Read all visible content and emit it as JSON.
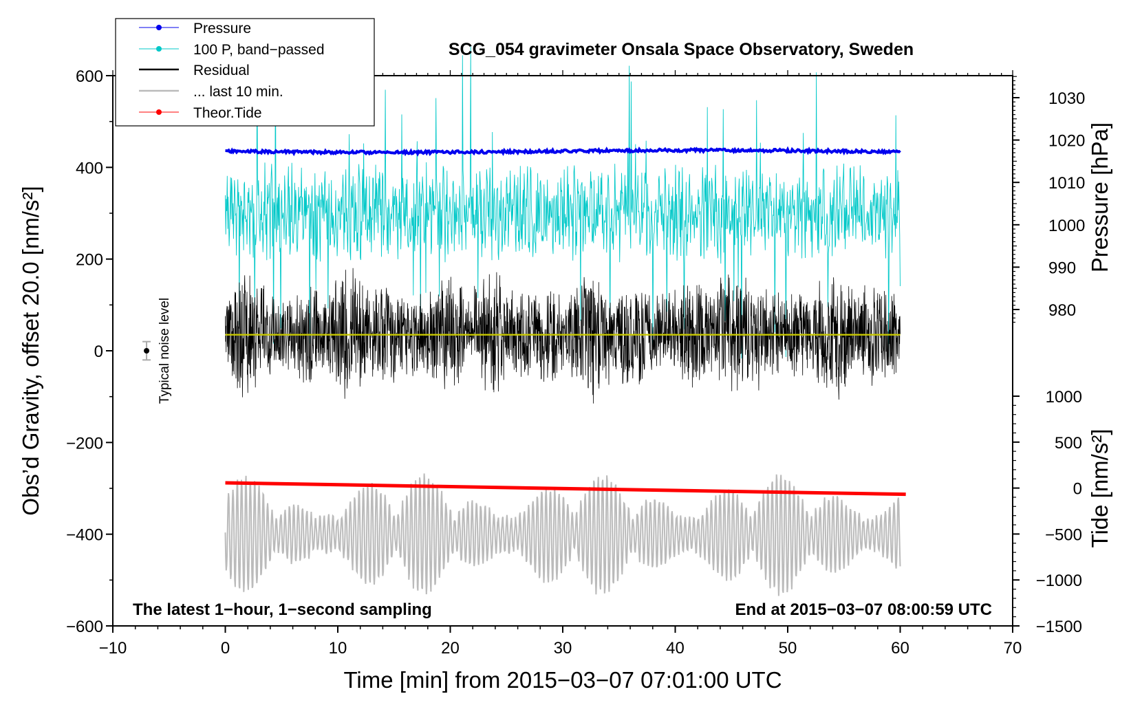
{
  "chart_data": {
    "type": "line",
    "title": "SCG_054 gravimeter Onsala Space Observatory, Sweden",
    "xlabel": "Time [min] from 2015−03−07 07:01:00 UTC",
    "ylabel": "Obs’d Gravity, offset 20.0 [nm/s²]",
    "xlim": [
      -10,
      70
    ],
    "ylim": [
      -600,
      600
    ],
    "x_ticks": [
      -10,
      0,
      10,
      20,
      30,
      40,
      50,
      60,
      70
    ],
    "x_tick_labels": [
      "−10",
      "0",
      "10",
      "20",
      "30",
      "40",
      "50",
      "60",
      "70"
    ],
    "y_ticks": [
      -600,
      -400,
      -200,
      0,
      200,
      400,
      600
    ],
    "y_tick_labels": [
      "−600",
      "−400",
      "−200",
      "0",
      "200",
      "400",
      "600"
    ],
    "pressure_axis": {
      "label": "Pressure [hPa]",
      "ticks": [
        980,
        990,
        1000,
        1010,
        1020,
        1030
      ],
      "tick_labels": [
        "980",
        "990",
        "1000",
        "1010",
        "1020",
        "1030"
      ]
    },
    "tide_axis": {
      "label": "Tide [nm/s²]",
      "ticks": [
        -1500,
        -1000,
        -500,
        0,
        500,
        1000
      ],
      "tick_labels": [
        "−1500",
        "−1000",
        "−500",
        "0",
        "500",
        "1000"
      ]
    },
    "series": [
      {
        "name": "Pressure",
        "color": "#0000ee",
        "plot_level": 435,
        "x_range": [
          0,
          60
        ]
      },
      {
        "name": "100 P, band−passed",
        "color": "#00c8c8",
        "plot_center": 300,
        "x_range": [
          0,
          60
        ]
      },
      {
        "name": "Residual",
        "color": "#000000",
        "plot_center": 35,
        "x_range": [
          0,
          60
        ]
      },
      {
        "name": "... last 10 min.",
        "color": "#bbbbbb",
        "plot_center": -400,
        "x_range": [
          0,
          60
        ]
      },
      {
        "name": "Theor.Tide",
        "color": "#ff0000",
        "plot_start": -288,
        "plot_end": -313,
        "x_range": [
          0,
          60.5
        ]
      }
    ],
    "legend": [
      "Pressure",
      "100 P, band−passed",
      "Residual",
      "... last 10 min.",
      "Theor.Tide"
    ],
    "legend_position": "top-left",
    "noise_marker": {
      "label": "Typical noise level",
      "x": -7,
      "y": 0,
      "err": 20
    },
    "annotations": {
      "left": "The latest 1−hour, 1−second sampling",
      "right": "End at 2015−03−07 08:00:59 UTC"
    }
  }
}
